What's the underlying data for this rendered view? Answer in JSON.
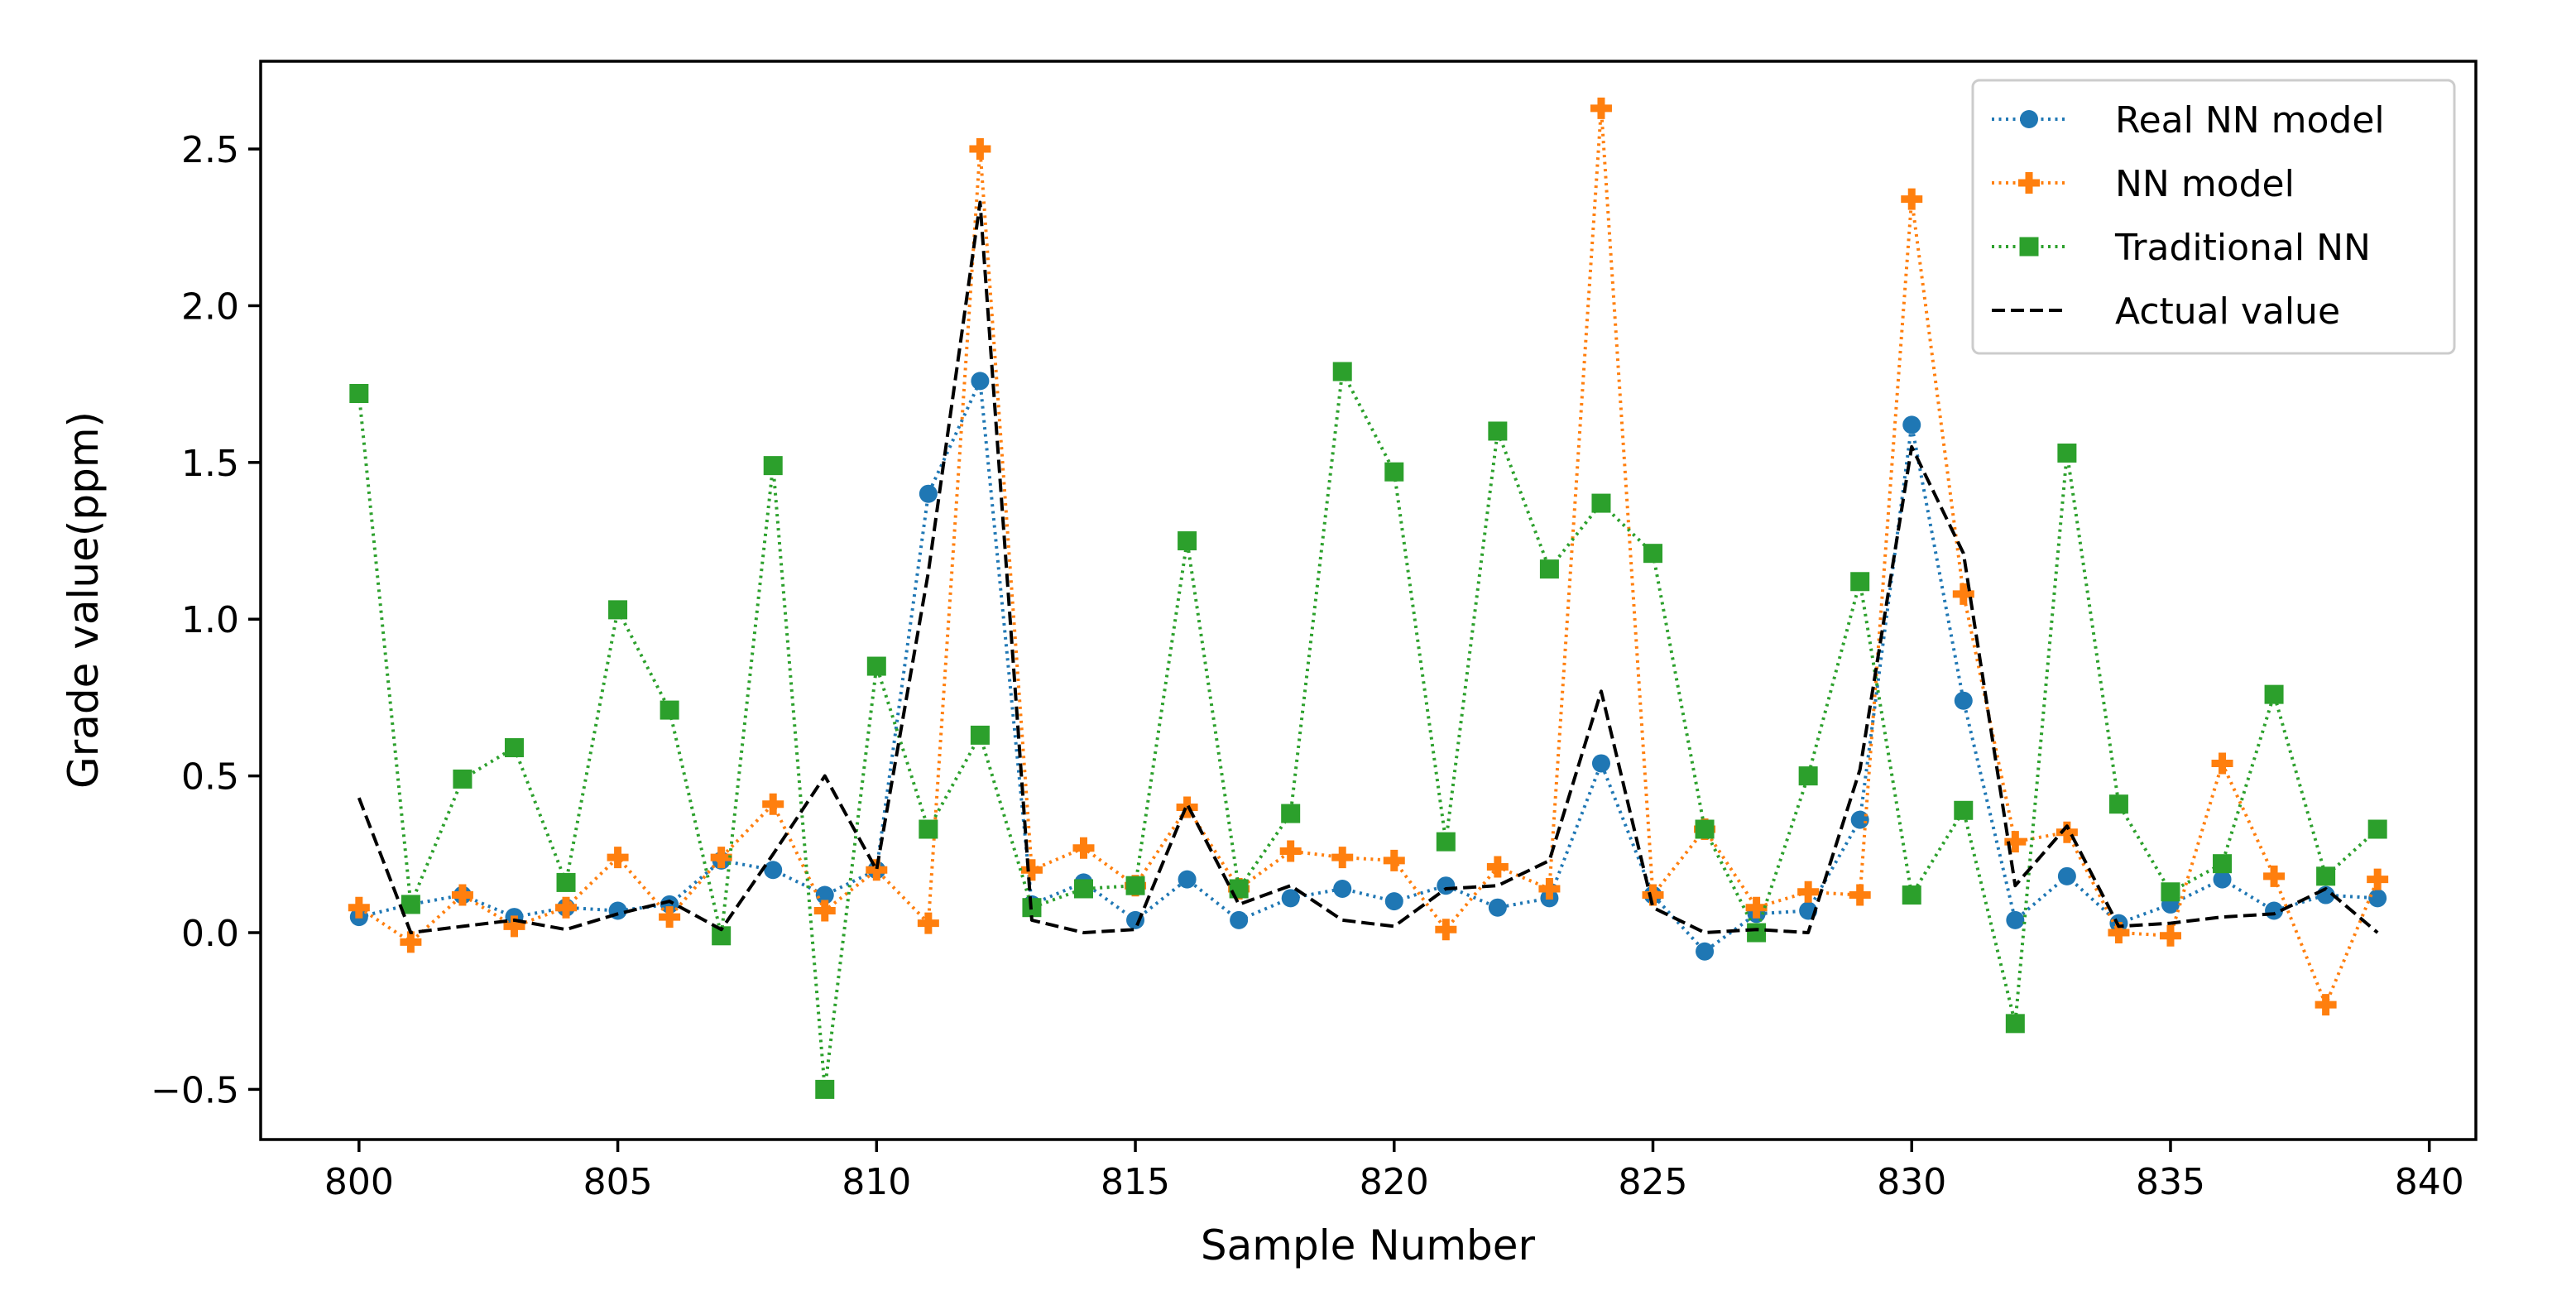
{
  "chart_data": {
    "type": "line",
    "title": "",
    "xlabel": "Sample Number",
    "ylabel": "Grade value(ppm)",
    "xlim": [
      798.1,
      840.9
    ],
    "ylim": [
      -0.66,
      2.78
    ],
    "xticks": [
      800,
      805,
      810,
      815,
      820,
      825,
      830,
      835,
      840
    ],
    "yticks": [
      -0.5,
      0.0,
      0.5,
      1.0,
      1.5,
      2.0,
      2.5
    ],
    "ytick_labels": [
      "−0.5",
      "0.0",
      "0.5",
      "1.0",
      "1.5",
      "2.0",
      "2.5"
    ],
    "legend_position": "top-right",
    "x": [
      800,
      801,
      802,
      803,
      804,
      805,
      806,
      807,
      808,
      809,
      810,
      811,
      812,
      813,
      814,
      815,
      816,
      817,
      818,
      819,
      820,
      821,
      822,
      823,
      824,
      825,
      826,
      827,
      828,
      829,
      830,
      831,
      832,
      833,
      834,
      835,
      836,
      837,
      838,
      839
    ],
    "series": [
      {
        "name": "Real NN model",
        "color": "#1f77b4",
        "marker": "circle",
        "linestyle": "dotted",
        "values": [
          0.05,
          0.09,
          0.12,
          0.05,
          0.08,
          0.07,
          0.09,
          0.23,
          0.2,
          0.12,
          0.2,
          1.4,
          1.76,
          0.09,
          0.16,
          0.04,
          0.17,
          0.04,
          0.11,
          0.14,
          0.1,
          0.15,
          0.08,
          0.11,
          0.54,
          0.12,
          -0.06,
          0.06,
          0.07,
          0.36,
          1.62,
          0.74,
          0.04,
          0.18,
          0.03,
          0.09,
          0.17,
          0.07,
          0.12,
          0.11
        ]
      },
      {
        "name": "NN model",
        "color": "#ff7f0e",
        "marker": "plus",
        "linestyle": "dotted",
        "values": [
          0.08,
          -0.03,
          0.12,
          0.02,
          0.08,
          0.24,
          0.05,
          0.24,
          0.41,
          0.07,
          0.2,
          0.03,
          2.5,
          0.2,
          0.27,
          0.15,
          0.4,
          0.14,
          0.26,
          0.24,
          0.23,
          0.01,
          0.21,
          0.14,
          2.63,
          0.12,
          0.33,
          0.08,
          0.13,
          0.12,
          2.34,
          1.08,
          0.29,
          0.32,
          0.0,
          -0.01,
          0.54,
          0.18,
          -0.23,
          0.17
        ]
      },
      {
        "name": "Traditional NN",
        "color": "#2ca02c",
        "marker": "square",
        "linestyle": "dotted",
        "values": [
          1.72,
          0.09,
          0.49,
          0.59,
          0.16,
          1.03,
          0.71,
          -0.01,
          1.49,
          -0.5,
          0.85,
          0.33,
          0.63,
          0.08,
          0.14,
          0.15,
          1.25,
          0.14,
          0.38,
          1.79,
          1.47,
          0.29,
          1.6,
          1.16,
          1.37,
          1.21,
          0.33,
          0.0,
          0.5,
          1.12,
          0.12,
          0.39,
          -0.29,
          1.53,
          0.41,
          0.13,
          0.22,
          0.76,
          0.18,
          0.33
        ]
      },
      {
        "name": "Actual value",
        "color": "#000000",
        "marker": "none",
        "linestyle": "dashed",
        "values": [
          0.43,
          0.0,
          0.02,
          0.04,
          0.01,
          0.06,
          0.1,
          0.01,
          0.25,
          0.5,
          0.2,
          1.15,
          2.33,
          0.04,
          0.0,
          0.01,
          0.41,
          0.09,
          0.15,
          0.04,
          0.02,
          0.14,
          0.15,
          0.23,
          0.77,
          0.08,
          0.0,
          0.01,
          0.0,
          0.52,
          1.55,
          1.21,
          0.15,
          0.34,
          0.02,
          0.03,
          0.05,
          0.06,
          0.14,
          0.0
        ]
      }
    ]
  }
}
